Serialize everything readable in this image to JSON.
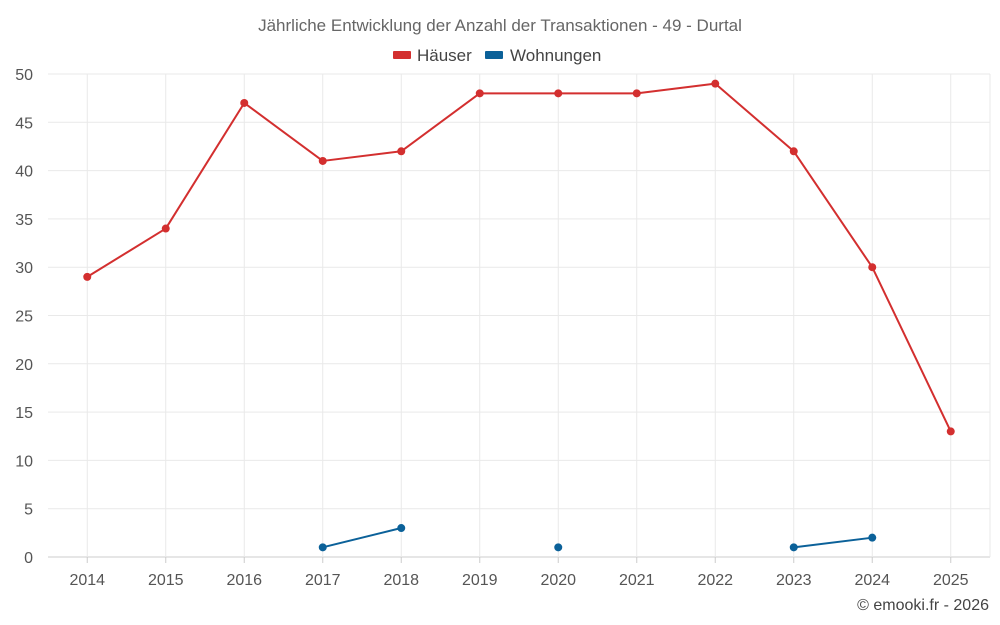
{
  "chart_data": {
    "type": "line",
    "title": "Jährliche Entwicklung der Anzahl der Transaktionen - 49 - Durtal",
    "categories": [
      "2014",
      "2015",
      "2016",
      "2017",
      "2018",
      "2019",
      "2020",
      "2021",
      "2022",
      "2023",
      "2024",
      "2025"
    ],
    "y_ticks": [
      "0",
      "5",
      "10",
      "15",
      "20",
      "25",
      "30",
      "35",
      "40",
      "45",
      "50"
    ],
    "ylim": [
      0,
      50
    ],
    "grid": true,
    "legend_position": "top-center",
    "series": [
      {
        "name": "Häuser",
        "color": "#d32f2f",
        "values": [
          29,
          34,
          47,
          41,
          42,
          48,
          48,
          48,
          49,
          42,
          30,
          13
        ]
      },
      {
        "name": "Wohnungen",
        "color": "#0b6199",
        "values": [
          null,
          null,
          null,
          1,
          3,
          null,
          1,
          null,
          null,
          1,
          2,
          null
        ]
      }
    ]
  },
  "credit": "© emooki.fr - 2026"
}
